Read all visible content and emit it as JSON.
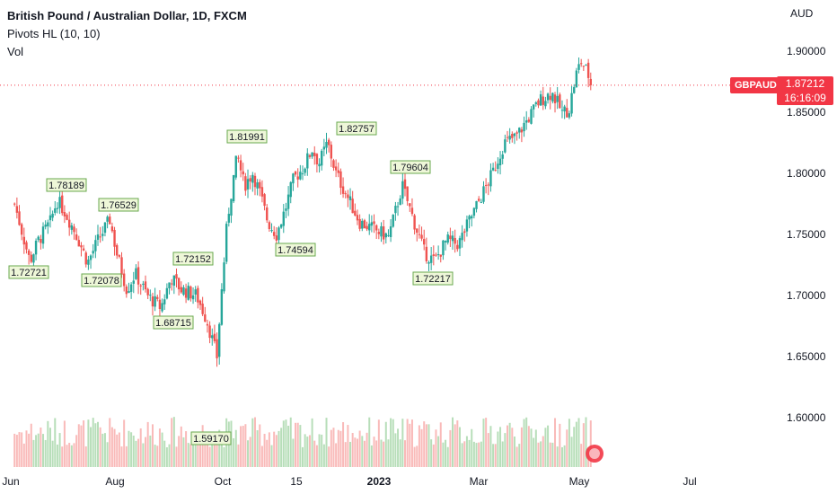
{
  "legend": {
    "title": "British Pound / Australian Dollar, 1D, FXCM",
    "indicator": "Pivots HL (10, 10)",
    "volume": "Vol"
  },
  "price_axis": {
    "currency": "AUD"
  },
  "last_price": {
    "symbol": "GBPAUD",
    "price": "1.87212",
    "countdown": "16:16:09"
  },
  "colors": {
    "up": "#26a69a",
    "down": "#ef5350",
    "accent": "#f23645",
    "pivot_bg": "#eef7d8",
    "pivot_border": "#6aa84f"
  },
  "chart_data": {
    "type": "candlestick",
    "title": "British Pound / Australian Dollar, 1D, FXCM",
    "ylabel": "AUD",
    "ylim": [
      1.556,
      1.918
    ],
    "y_ticks": [
      "1.90000",
      "1.85000",
      "1.80000",
      "1.75000",
      "1.70000",
      "1.65000",
      "1.60000"
    ],
    "x_ticks": [
      "Jun",
      "Aug",
      "Oct",
      "15",
      "2023",
      "Mar",
      "May",
      "Jul"
    ],
    "series_path_close": [
      [
        "2022-05-30",
        1.775
      ],
      [
        "2022-06-03",
        1.754
      ],
      [
        "2022-06-08",
        1.728
      ],
      [
        "2022-06-13",
        1.745
      ],
      [
        "2022-06-20",
        1.76
      ],
      [
        "2022-06-24",
        1.778
      ],
      [
        "2022-06-28",
        1.77
      ],
      [
        "2022-07-05",
        1.751
      ],
      [
        "2022-07-12",
        1.727
      ],
      [
        "2022-07-18",
        1.745
      ],
      [
        "2022-07-25",
        1.762
      ],
      [
        "2022-07-29",
        1.735
      ],
      [
        "2022-08-04",
        1.705
      ],
      [
        "2022-08-09",
        1.718
      ],
      [
        "2022-08-16",
        1.7
      ],
      [
        "2022-08-24",
        1.69
      ],
      [
        "2022-08-30",
        1.715
      ],
      [
        "2022-09-05",
        1.705
      ],
      [
        "2022-09-14",
        1.7
      ],
      [
        "2022-09-20",
        1.68
      ],
      [
        "2022-09-26",
        1.65
      ],
      [
        "2022-09-28",
        1.69
      ],
      [
        "2022-10-02",
        1.76
      ],
      [
        "2022-10-05",
        1.79
      ],
      [
        "2022-10-08",
        1.815
      ],
      [
        "2022-10-12",
        1.79
      ],
      [
        "2022-10-17",
        1.8
      ],
      [
        "2022-10-21",
        1.785
      ],
      [
        "2022-10-26",
        1.76
      ],
      [
        "2022-10-31",
        1.75
      ],
      [
        "2022-11-05",
        1.77
      ],
      [
        "2022-11-10",
        1.795
      ],
      [
        "2022-11-16",
        1.805
      ],
      [
        "2022-11-21",
        1.82
      ],
      [
        "2022-11-25",
        1.808
      ],
      [
        "2022-11-30",
        1.825
      ],
      [
        "2022-12-05",
        1.8
      ],
      [
        "2022-12-12",
        1.78
      ],
      [
        "2022-12-19",
        1.76
      ],
      [
        "2022-12-26",
        1.755
      ],
      [
        "2023-01-05",
        1.748
      ],
      [
        "2023-01-13",
        1.79
      ],
      [
        "2023-01-20",
        1.76
      ],
      [
        "2023-01-26",
        1.735
      ],
      [
        "2023-02-01",
        1.728
      ],
      [
        "2023-02-08",
        1.745
      ],
      [
        "2023-02-15",
        1.742
      ],
      [
        "2023-02-21",
        1.76
      ],
      [
        "2023-02-28",
        1.78
      ],
      [
        "2023-03-07",
        1.8
      ],
      [
        "2023-03-14",
        1.825
      ],
      [
        "2023-03-21",
        1.83
      ],
      [
        "2023-03-28",
        1.845
      ],
      [
        "2023-04-04",
        1.86
      ],
      [
        "2023-04-11",
        1.866
      ],
      [
        "2023-04-17",
        1.85
      ],
      [
        "2023-04-21",
        1.852
      ],
      [
        "2023-04-25",
        1.88
      ],
      [
        "2023-04-28",
        1.892
      ],
      [
        "2023-05-02",
        1.882
      ],
      [
        "2023-05-04",
        1.87212
      ]
    ],
    "pivots": [
      {
        "type": "low",
        "label": "1.72721"
      },
      {
        "type": "high",
        "label": "1.78189"
      },
      {
        "type": "low",
        "label": "1.72078"
      },
      {
        "type": "high",
        "label": "1.76529"
      },
      {
        "type": "low",
        "label": "1.68715"
      },
      {
        "type": "high",
        "label": "1.72152"
      },
      {
        "type": "low",
        "label": "1.59170"
      },
      {
        "type": "high",
        "label": "1.81991"
      },
      {
        "type": "low",
        "label": "1.74594"
      },
      {
        "type": "high",
        "label": "1.82757"
      },
      {
        "type": "high",
        "label": "1.79604"
      },
      {
        "type": "low",
        "label": "1.72217"
      }
    ],
    "last_close": 1.87212,
    "grid": false,
    "volume_panel": true
  }
}
